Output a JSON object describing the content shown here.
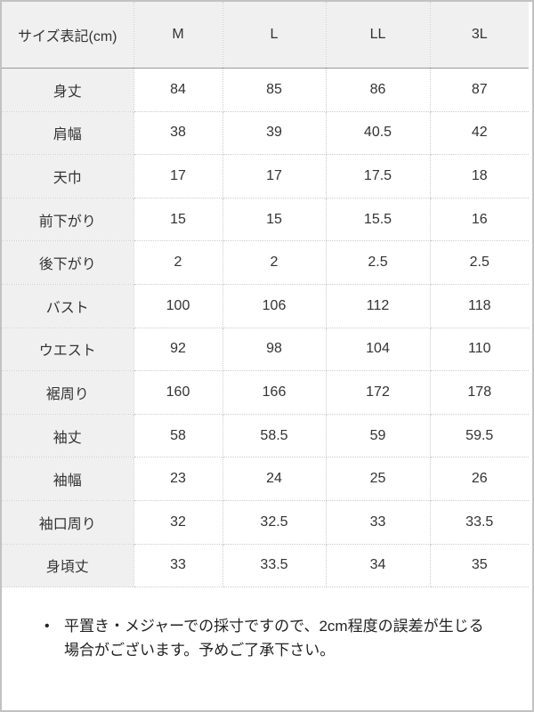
{
  "table": {
    "header": {
      "label": "サイズ表記(cm)",
      "sizes": [
        "M",
        "L",
        "LL",
        "3L"
      ]
    },
    "rows": [
      {
        "label": "身丈",
        "values": [
          "84",
          "85",
          "86",
          "87"
        ]
      },
      {
        "label": "肩幅",
        "values": [
          "38",
          "39",
          "40.5",
          "42"
        ]
      },
      {
        "label": "天巾",
        "values": [
          "17",
          "17",
          "17.5",
          "18"
        ]
      },
      {
        "label": "前下がり",
        "values": [
          "15",
          "15",
          "15.5",
          "16"
        ]
      },
      {
        "label": "後下がり",
        "values": [
          "2",
          "2",
          "2.5",
          "2.5"
        ]
      },
      {
        "label": "バスト",
        "values": [
          "100",
          "106",
          "112",
          "118"
        ]
      },
      {
        "label": "ウエスト",
        "values": [
          "92",
          "98",
          "104",
          "110"
        ]
      },
      {
        "label": "裾周り",
        "values": [
          "160",
          "166",
          "172",
          "178"
        ]
      },
      {
        "label": "袖丈",
        "values": [
          "58",
          "58.5",
          "59",
          "59.5"
        ]
      },
      {
        "label": "袖幅",
        "values": [
          "23",
          "24",
          "25",
          "26"
        ]
      },
      {
        "label": "袖口周り",
        "values": [
          "32",
          "32.5",
          "33",
          "33.5"
        ]
      },
      {
        "label": "身頃丈",
        "values": [
          "33",
          "33.5",
          "34",
          "35"
        ]
      }
    ]
  },
  "note": {
    "bullet": "•",
    "lines": [
      "平置き・メジャーでの採寸ですので、2cm程度の誤差が生じる",
      "場合がございます。予めご了承下さい。"
    ]
  },
  "colors": {
    "header_bg": "#f0f0f0",
    "dotted_border": "#cccccc",
    "solid_border": "#999999",
    "frame_border": "#c2c2c2",
    "text": "#333333"
  }
}
